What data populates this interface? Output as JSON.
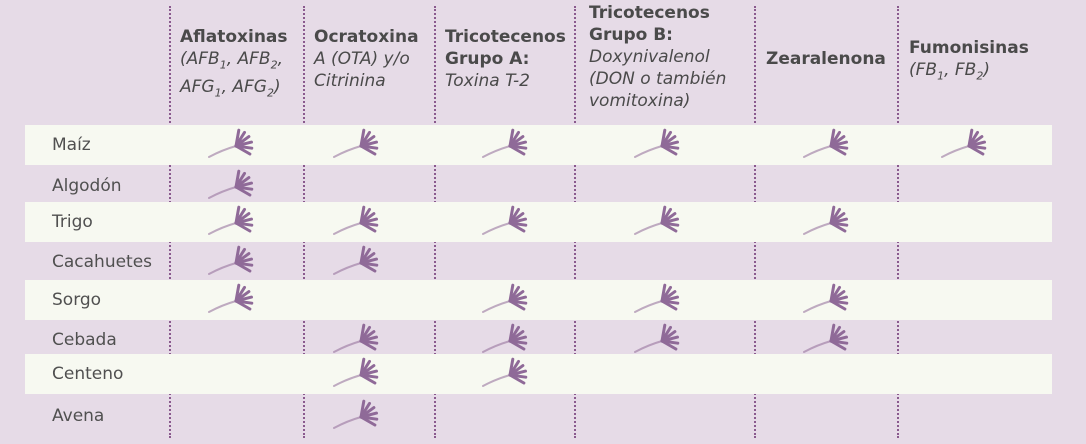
{
  "headers": [
    {
      "title": "Aflatoxinas",
      "sub_html": "(AFB<sub>1</sub>, AFB<sub>2</sub>,<br>AFG<sub>1</sub>, AFG<sub>2</sub>)"
    },
    {
      "title": "Ocratoxina",
      "sub_html": "A (OTA) y/o<br>Citrinina"
    },
    {
      "title": "Tricotecenos<br>Grupo A:",
      "sub_html": "Toxina T-2"
    },
    {
      "title": "Tricotecenos<br>Grupo B:",
      "sub_html": "Doxynivalenol<br>(DON o también<br>vomitoxina)"
    },
    {
      "title": "Zearalenona",
      "sub_html": ""
    },
    {
      "title": "Fumonisinas",
      "sub_html": "(FB<sub>1</sub>, FB<sub>2</sub>)"
    }
  ],
  "rows": [
    {
      "label": "Maíz",
      "marks": [
        1,
        1,
        1,
        1,
        1,
        1
      ]
    },
    {
      "label": "Algodón",
      "marks": [
        1,
        0,
        0,
        0,
        0,
        0
      ]
    },
    {
      "label": "Trigo",
      "marks": [
        1,
        1,
        1,
        1,
        1,
        0
      ]
    },
    {
      "label": "Cacahuetes",
      "marks": [
        1,
        1,
        0,
        0,
        0,
        0
      ]
    },
    {
      "label": "Sorgo",
      "marks": [
        1,
        0,
        1,
        1,
        1,
        0
      ]
    },
    {
      "label": "Cebada",
      "marks": [
        0,
        1,
        1,
        1,
        1,
        0
      ]
    },
    {
      "label": "Centeno",
      "marks": [
        0,
        1,
        1,
        0,
        0,
        0
      ]
    },
    {
      "label": "Avena",
      "marks": [
        0,
        1,
        0,
        0,
        0,
        0
      ]
    }
  ],
  "colors": {
    "mark": "#8f6a98",
    "divider": "#8a5a8e",
    "stripe": "#f7f9f1",
    "background": "#e6dbe7"
  },
  "icon": "grain-spike-icon"
}
